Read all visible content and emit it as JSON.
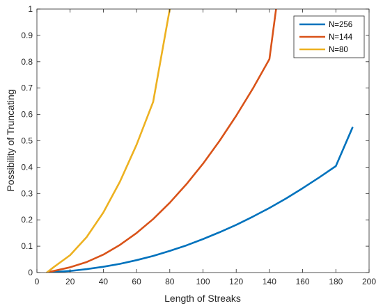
{
  "chart_data": {
    "type": "line",
    "xlabel": "Length of Streaks",
    "ylabel": "Possibility of Truncating",
    "xlim": [
      0,
      200
    ],
    "ylim": [
      0,
      1
    ],
    "xticks": [
      0,
      20,
      40,
      60,
      80,
      100,
      120,
      140,
      160,
      180,
      200
    ],
    "xtick_labels": [
      "0",
      "20",
      "40",
      "60",
      "80",
      "100",
      "120",
      "140",
      "160",
      "180",
      "200"
    ],
    "yticks": [
      0,
      0.1,
      0.2,
      0.3,
      0.4,
      0.5,
      0.6,
      0.7,
      0.8,
      0.9,
      1
    ],
    "ytick_labels": [
      "0",
      "0.1",
      "0.2",
      "0.3",
      "0.4",
      "0.5",
      "0.6",
      "0.7",
      "0.8",
      "0.9",
      "1"
    ],
    "grid": false,
    "legend_position": "top-right",
    "series": [
      {
        "name": "N=256",
        "color": "#0072BD",
        "x": [
          6,
          10,
          20,
          30,
          40,
          50,
          60,
          70,
          80,
          90,
          100,
          110,
          120,
          130,
          140,
          150,
          160,
          170,
          180,
          190
        ],
        "y": [
          0.0,
          0.002,
          0.006,
          0.013,
          0.022,
          0.033,
          0.047,
          0.063,
          0.082,
          0.103,
          0.127,
          0.153,
          0.181,
          0.212,
          0.245,
          0.281,
          0.32,
          0.361,
          0.404,
          0.55
        ]
      },
      {
        "name": "N=144",
        "color": "#D95319",
        "x": [
          6,
          10,
          20,
          30,
          40,
          50,
          60,
          70,
          80,
          90,
          100,
          110,
          120,
          130,
          140,
          144
        ],
        "y": [
          0.0,
          0.006,
          0.02,
          0.04,
          0.068,
          0.105,
          0.15,
          0.203,
          0.265,
          0.335,
          0.413,
          0.5,
          0.595,
          0.698,
          0.81,
          1.0
        ]
      },
      {
        "name": "N=80",
        "color": "#EDB120",
        "x": [
          6,
          10,
          20,
          30,
          40,
          50,
          60,
          70,
          80
        ],
        "y": [
          0.0,
          0.02,
          0.066,
          0.135,
          0.228,
          0.345,
          0.485,
          0.648,
          1.0
        ]
      }
    ]
  }
}
